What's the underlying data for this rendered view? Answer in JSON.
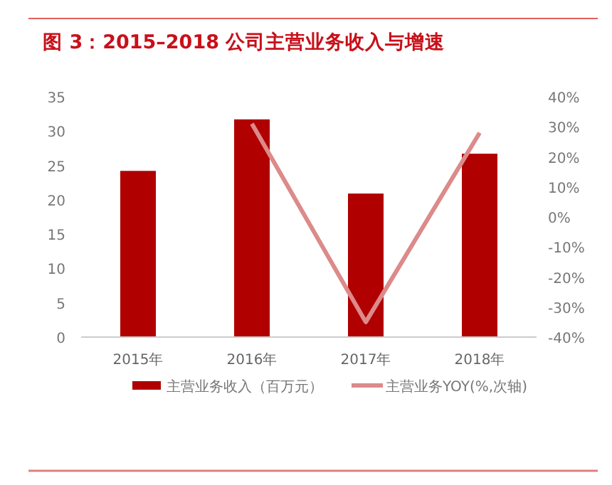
{
  "chart_data": {
    "type": "bar",
    "title": "图 3：2015–2018 公司主营业务收入与增速",
    "categories": [
      "2015年",
      "2016年",
      "2017年",
      "2018年"
    ],
    "series": [
      {
        "name": "主营业务收入（百万元）",
        "color": "#b00000",
        "values": [
          24.2,
          31.7,
          20.9,
          26.7
        ]
      },
      {
        "name": "主营业务YOY(%,次轴)",
        "color": "#dc8a8a",
        "type": "line",
        "axis": "y2",
        "values": [
          null,
          31,
          -35,
          28
        ]
      }
    ],
    "ylim": [
      0,
      35
    ],
    "yticks": [
      0,
      5,
      10,
      15,
      20,
      25,
      30,
      35
    ],
    "y2lim": [
      -40,
      40
    ],
    "y2ticks": [
      {
        "value": -40,
        "label": "-40%"
      },
      {
        "value": -30,
        "label": "-30%"
      },
      {
        "value": -20,
        "label": "-20%"
      },
      {
        "value": -10,
        "label": "-10%"
      },
      {
        "value": 0,
        "label": "0%"
      },
      {
        "value": 10,
        "label": "10%"
      },
      {
        "value": 20,
        "label": "20%"
      },
      {
        "value": 30,
        "label": "30%"
      },
      {
        "value": 40,
        "label": "40%"
      }
    ],
    "legend": "bottom",
    "grid": false
  }
}
